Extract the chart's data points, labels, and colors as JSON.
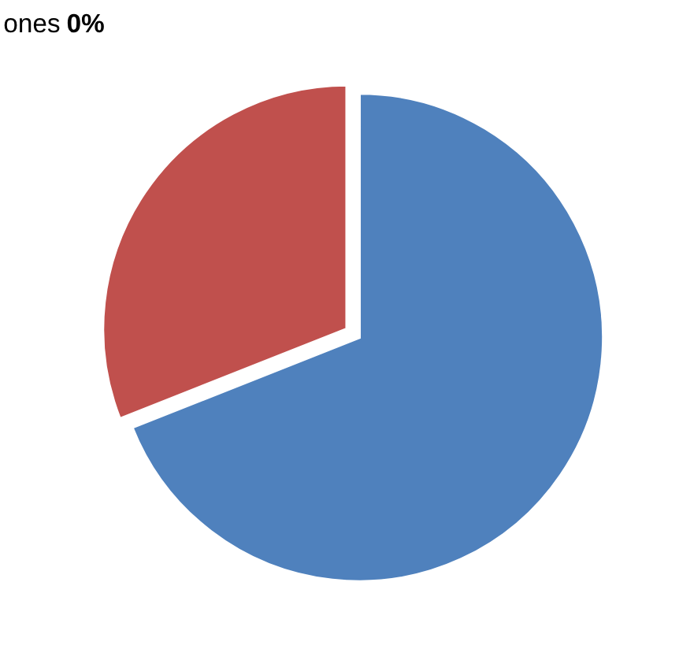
{
  "chart_data": {
    "type": "pie",
    "categories": [
      null,
      null,
      "ones"
    ],
    "values": [
      69,
      31,
      0
    ],
    "colors": [
      "#4f81bd",
      "#c0504d",
      "#9bbb59"
    ],
    "value_labels": [
      null,
      null,
      "0%"
    ]
  }
}
